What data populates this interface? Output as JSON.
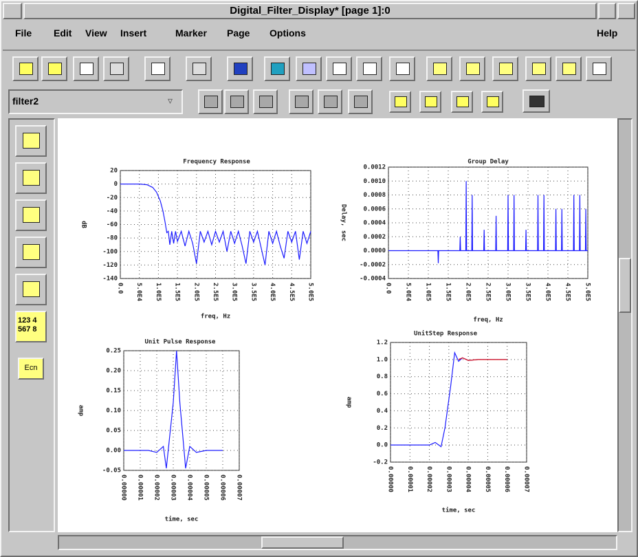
{
  "window": {
    "title": "Digital_Filter_Display* [page 1]:0"
  },
  "menu": {
    "items": [
      "File",
      "Edit",
      "View",
      "Insert",
      "Marker",
      "Page",
      "Options"
    ],
    "help": "Help"
  },
  "toolbar": {
    "dropdown": "filter2"
  },
  "palette": {
    "labels": [
      "123 4",
      "567 8",
      "Ecn"
    ]
  },
  "chart_data": [
    {
      "type": "line",
      "title": "Frequency Response",
      "x_label": "freq, Hz",
      "y_label": "dB",
      "x": [
        0,
        50000,
        70000,
        85000,
        95000,
        105000,
        112000,
        118000,
        122000,
        126000,
        130000,
        135000,
        140000,
        145000,
        150000,
        160000,
        170000,
        180000,
        190000,
        200000,
        210000,
        220000,
        230000,
        240000,
        250000,
        260000,
        270000,
        280000,
        290000,
        300000,
        310000,
        320000,
        330000,
        340000,
        350000,
        360000,
        370000,
        380000,
        390000,
        400000,
        410000,
        420000,
        430000,
        440000,
        450000,
        460000,
        470000,
        480000,
        490000,
        500000
      ],
      "series": [
        {
          "color": "#1a1aff",
          "values": [
            0,
            0,
            -1,
            -5,
            -12,
            -25,
            -40,
            -58,
            -72,
            -70,
            -90,
            -70,
            -88,
            -70,
            -85,
            -70,
            -92,
            -70,
            -88,
            -118,
            -70,
            -86,
            -70,
            -90,
            -70,
            -86,
            -70,
            -100,
            -70,
            -88,
            -70,
            -92,
            -118,
            -70,
            -86,
            -70,
            -95,
            -120,
            -70,
            -88,
            -70,
            -92,
            -110,
            -70,
            -86,
            -70,
            -112,
            -70,
            -88,
            -70
          ]
        }
      ],
      "xlim": [
        0,
        500000
      ],
      "ylim": [
        -140,
        20
      ],
      "xticks": [
        {
          "value": 0,
          "label": "0.0"
        },
        {
          "value": 50000,
          "label": "5.0E4"
        },
        {
          "value": 100000,
          "label": "1.0E5"
        },
        {
          "value": 150000,
          "label": "1.5E5"
        },
        {
          "value": 200000,
          "label": "2.0E5"
        },
        {
          "value": 250000,
          "label": "2.5E5"
        },
        {
          "value": 300000,
          "label": "3.0E5"
        },
        {
          "value": 350000,
          "label": "3.5E5"
        },
        {
          "value": 400000,
          "label": "4.0E5"
        },
        {
          "value": 450000,
          "label": "4.5E5"
        },
        {
          "value": 500000,
          "label": "5.0E5"
        }
      ],
      "yticks": [
        20,
        0,
        -20,
        -40,
        -60,
        -80,
        -100,
        -120,
        -140
      ],
      "grid": true
    },
    {
      "type": "line",
      "title": "Group Delay",
      "x_label": "freq, Hz",
      "y_label": "Delay, sec",
      "x": [
        0,
        124000,
        125000,
        126000,
        179000,
        180000,
        181000,
        194000,
        195000,
        196000,
        209000,
        210000,
        211000,
        239000,
        240000,
        241000,
        269000,
        270000,
        271000,
        299000,
        300000,
        301000,
        314000,
        315000,
        316000,
        344000,
        345000,
        346000,
        374000,
        375000,
        376000,
        389000,
        390000,
        391000,
        419000,
        420000,
        421000,
        434000,
        435000,
        436000,
        464000,
        465000,
        466000,
        479000,
        480000,
        481000,
        494000,
        495000,
        496000,
        500000
      ],
      "series": [
        {
          "color": "#1a1aff",
          "values": [
            0,
            0,
            -0.00018,
            0,
            0,
            0.0002,
            0,
            0,
            0.001,
            0,
            0,
            0.0008,
            0,
            0,
            0.0003,
            0,
            0,
            0.0005,
            0,
            0,
            0.0008,
            0,
            0,
            0.0008,
            0,
            0,
            0.0003,
            0,
            0,
            0.0008,
            0,
            0,
            0.0008,
            0,
            0,
            0.0006,
            0,
            0,
            0.0006,
            0,
            0,
            0.0008,
            0,
            0,
            0.0008,
            0,
            0,
            0.0006,
            0,
            0
          ]
        }
      ],
      "xlim": [
        0,
        500000
      ],
      "ylim": [
        -0.0004,
        0.0012
      ],
      "xticks": [
        {
          "value": 0,
          "label": "0.0"
        },
        {
          "value": 50000,
          "label": "5.0E4"
        },
        {
          "value": 100000,
          "label": "1.0E5"
        },
        {
          "value": 150000,
          "label": "1.5E5"
        },
        {
          "value": 200000,
          "label": "2.0E5"
        },
        {
          "value": 250000,
          "label": "2.5E5"
        },
        {
          "value": 300000,
          "label": "3.0E5"
        },
        {
          "value": 350000,
          "label": "3.5E5"
        },
        {
          "value": 400000,
          "label": "4.0E5"
        },
        {
          "value": 450000,
          "label": "4.5E5"
        },
        {
          "value": 500000,
          "label": "5.0E5"
        }
      ],
      "yticks": [
        0.0012,
        {
          "value": 0.001,
          "label": "0.0010"
        },
        0.0008,
        0.0006,
        0.0004,
        0.0002,
        {
          "value": 0,
          "label": "0.0000"
        },
        -0.0002,
        -0.0004
      ],
      "grid": true
    },
    {
      "type": "line",
      "title": "Unit Pulse Response",
      "x_label": "time, sec",
      "y_label": "amp",
      "x": [
        0,
        1.5e-05,
        2e-05,
        2.4e-05,
        2.58e-05,
        3e-05,
        3.2e-05,
        3.4e-05,
        3.75e-05,
        4e-05,
        4.4e-05,
        5e-05,
        6e-05
      ],
      "series": [
        {
          "color": "#1a1aff",
          "values": [
            0,
            0,
            -0.005,
            0.01,
            -0.045,
            0.12,
            0.25,
            0.12,
            -0.045,
            0.01,
            -0.005,
            0,
            0
          ]
        }
      ],
      "xlim": [
        0,
        7e-05
      ],
      "ylim": [
        -0.05,
        0.25
      ],
      "xticks": [
        {
          "value": 0,
          "label": "0.00000"
        },
        {
          "value": 1e-05,
          "label": "0.00001"
        },
        {
          "value": 2e-05,
          "label": "0.00002"
        },
        {
          "value": 3e-05,
          "label": "0.00003"
        },
        {
          "value": 4e-05,
          "label": "0.00004"
        },
        {
          "value": 5e-05,
          "label": "0.00005"
        },
        {
          "value": 6e-05,
          "label": "0.00006"
        },
        {
          "value": 7e-05,
          "label": "0.00007"
        }
      ],
      "yticks": [
        0.25,
        {
          "value": 0.2,
          "label": "0.20"
        },
        0.15,
        {
          "value": 0.1,
          "label": "0.10"
        },
        0.05,
        {
          "value": 0,
          "label": "0.00"
        },
        -0.05
      ],
      "grid": true
    },
    {
      "type": "line",
      "title": "UnitStep Response",
      "x_label": "time, sec",
      "y_label": "amp",
      "x": [
        0,
        2e-05,
        2.3e-05,
        2.6e-05,
        2.8e-05,
        3.1e-05,
        3.3e-05,
        3.5e-05,
        3.7e-05,
        4e-05,
        4.5e-05,
        6e-05
      ],
      "series": [
        {
          "color": "#1a1aff",
          "values": [
            0,
            0,
            0.03,
            -0.02,
            0.2,
            0.7,
            1.08,
            0.98,
            1.02,
            0.99,
            1,
            1
          ]
        },
        {
          "color": "#e01010",
          "values": [
            null,
            null,
            null,
            null,
            null,
            null,
            null,
            1,
            1.02,
            0.99,
            1,
            1
          ]
        }
      ],
      "xlim": [
        0,
        7e-05
      ],
      "ylim": [
        -0.2,
        1.2
      ],
      "xticks": [
        {
          "value": 0,
          "label": "0.00000"
        },
        {
          "value": 1e-05,
          "label": "0.00001"
        },
        {
          "value": 2e-05,
          "label": "0.00002"
        },
        {
          "value": 3e-05,
          "label": "0.00003"
        },
        {
          "value": 4e-05,
          "label": "0.00004"
        },
        {
          "value": 5e-05,
          "label": "0.00005"
        },
        {
          "value": 6e-05,
          "label": "0.00006"
        },
        {
          "value": 7e-05,
          "label": "0.00007"
        }
      ],
      "yticks": [
        1.2,
        {
          "value": 1,
          "label": "1.0"
        },
        0.8,
        0.6,
        0.4,
        0.2,
        {
          "value": 0,
          "label": "0.0"
        },
        -0.2
      ],
      "grid": true
    }
  ]
}
